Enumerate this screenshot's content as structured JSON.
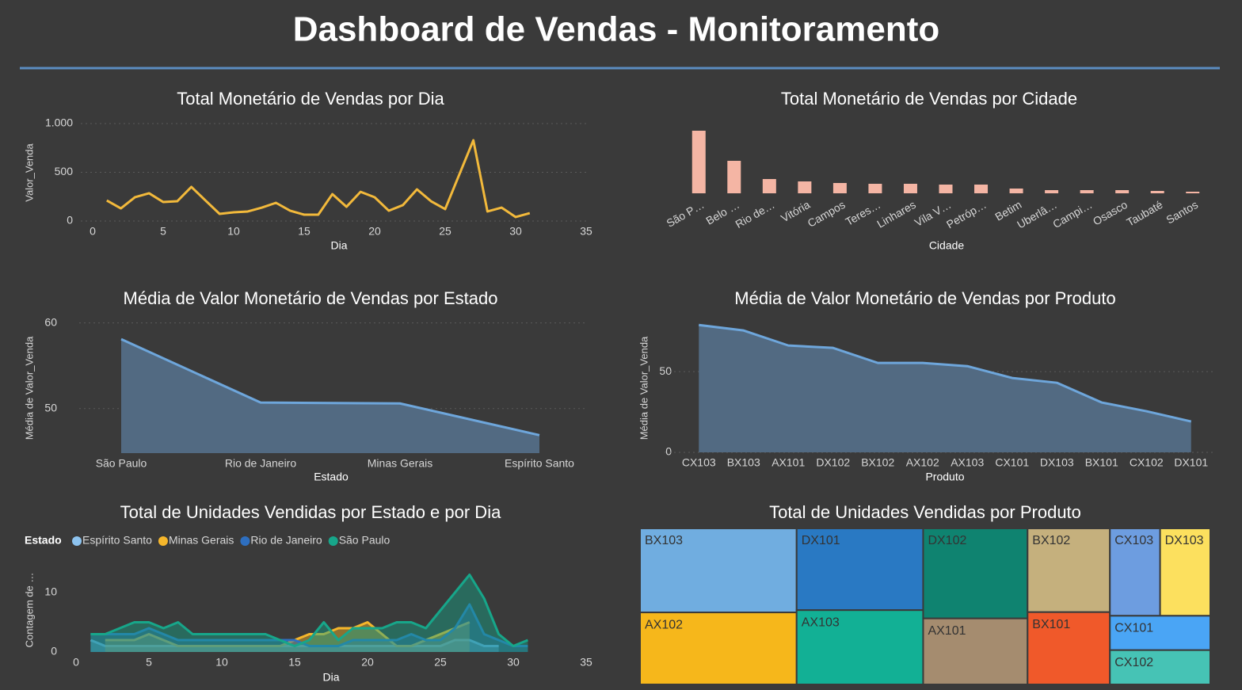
{
  "header": {
    "title": "Dashboard de Vendas - Monitoramento"
  },
  "chart_data": [
    {
      "type": "line",
      "title": "Total Monetário de Vendas por Dia",
      "x_label": "Dia",
      "y_label": "Valor_Venda",
      "x": [
        1,
        2,
        3,
        4,
        5,
        6,
        7,
        8,
        9,
        10,
        11,
        12,
        13,
        14,
        15,
        16,
        17,
        18,
        19,
        20,
        21,
        22,
        23,
        24,
        25,
        26,
        27,
        28,
        29,
        30,
        31
      ],
      "values": [
        211,
        130,
        244,
        285,
        195,
        203,
        350,
        211,
        73,
        89,
        98,
        138,
        187,
        106,
        65,
        65,
        276,
        146,
        300,
        244,
        106,
        163,
        325,
        203,
        122,
        476,
        829,
        98,
        138,
        41,
        81
      ],
      "color": "#f2b93b",
      "xlim": [
        0,
        35
      ],
      "xticks": [
        0,
        5,
        10,
        15,
        20,
        25,
        30,
        35
      ],
      "ylim": [
        0,
        1000
      ],
      "yticks": [
        0,
        500,
        {
          "value": 1000,
          "label": "1.000"
        }
      ],
      "grid": true
    },
    {
      "type": "bar",
      "title": "Total Monetário de Vendas por Cidade",
      "x_label": "Cidade",
      "categories": [
        "São P…",
        "Belo …",
        "Rio de…",
        "Vitória",
        "Campos",
        "Teres…",
        "Linhares",
        "Vila V…",
        "Petróp…",
        "Betim",
        "Uberlâ…",
        "Campi…",
        "Osasco",
        "Taubaté",
        "Santos"
      ],
      "values": [
        1975,
        1025,
        450,
        375,
        325,
        300,
        300,
        275,
        275,
        150,
        100,
        100,
        100,
        75,
        50
      ],
      "color": "#f4b5a4",
      "ylim": [
        0,
        2000
      ]
    },
    {
      "type": "area",
      "title": "Média de Valor Monetário de Vendas por Estado",
      "x_label": "Estado",
      "y_label": "Média de Valor_Venda",
      "categories": [
        "São Paulo",
        "Rio de Janeiro",
        "Minas Gerais",
        "Espírito Santo"
      ],
      "values": [
        58.1,
        50.7,
        50.6,
        46.9
      ],
      "color": "#6ea6db",
      "ylim": [
        44.8,
        60.7
      ],
      "yticks": [
        50,
        60
      ],
      "grid": true
    },
    {
      "type": "area",
      "title": "Média de Valor Monetário de Vendas por Produto",
      "x_label": "Produto",
      "y_label": "Média de Valor_Venda",
      "categories": [
        "CX103",
        "BX103",
        "AX101",
        "DX102",
        "BX102",
        "AX102",
        "AX103",
        "CX101",
        "DX103",
        "BX101",
        "CX102",
        "DX101"
      ],
      "values": [
        78.9,
        75.5,
        66.2,
        64.7,
        55.4,
        55.4,
        53.4,
        46.1,
        43.1,
        30.9,
        25.5,
        19.1
      ],
      "color": "#6ea6db",
      "ylim": [
        0,
        80
      ],
      "yticks": [
        0,
        50
      ],
      "grid": true
    },
    {
      "type": "area",
      "title": "Total de Unidades Vendidas por Estado e por Dia",
      "x_label": "Dia",
      "y_label": "Contagem de …",
      "legend_title": "Estado",
      "legend": "top-left",
      "x": [
        1,
        2,
        3,
        4,
        5,
        6,
        7,
        8,
        9,
        10,
        11,
        12,
        13,
        14,
        15,
        16,
        17,
        18,
        19,
        20,
        21,
        22,
        23,
        24,
        25,
        26,
        27,
        28,
        29,
        30,
        31
      ],
      "series": [
        {
          "name": "Espírito Santo",
          "color": "#8dc3ef",
          "values": [
            2,
            1,
            1,
            1,
            1,
            1,
            1,
            1,
            1,
            1,
            1,
            1,
            1,
            1,
            1,
            1,
            1,
            1,
            1,
            1,
            1,
            1,
            1,
            1,
            1,
            2,
            2,
            1,
            1,
            null,
            null
          ]
        },
        {
          "name": "Minas Gerais",
          "color": "#f5b62b",
          "values": [
            null,
            2,
            2,
            2,
            3,
            2,
            1,
            1,
            1,
            1,
            1,
            1,
            1,
            1,
            2,
            3,
            3,
            4,
            4,
            5,
            3,
            1,
            1,
            2,
            3,
            4,
            5,
            null,
            null,
            null,
            null
          ]
        },
        {
          "name": "Rio de Janeiro",
          "color": "#2e6fc0",
          "values": [
            3,
            3,
            3,
            3,
            4,
            3,
            2,
            2,
            2,
            2,
            2,
            2,
            2,
            2,
            2,
            1,
            1,
            1,
            2,
            2,
            2,
            2,
            3,
            2,
            2,
            4,
            8,
            3,
            2,
            1,
            1
          ]
        },
        {
          "name": "São Paulo",
          "color": "#17a68a",
          "values": [
            3,
            3,
            4,
            5,
            5,
            4,
            5,
            3,
            3,
            3,
            3,
            3,
            3,
            2,
            1,
            2,
            5,
            2,
            4,
            4,
            4,
            5,
            5,
            4,
            7,
            10,
            13,
            9,
            3,
            1,
            2
          ]
        }
      ],
      "xlim": [
        0,
        35
      ],
      "xticks": [
        0,
        5,
        10,
        15,
        20,
        25,
        30,
        35
      ],
      "ylim": [
        0,
        14
      ],
      "yticks": [
        0,
        10
      ]
    },
    {
      "type": "treemap",
      "title": "Total de Unidades Vendidas por Produto",
      "categories": [
        "BX103",
        "AX102",
        "DX101",
        "AX103",
        "DX102",
        "AX101",
        "BX102",
        "BX101",
        "CX103",
        "DX103",
        "CX101",
        "CX102"
      ],
      "values": [
        42,
        36,
        33,
        30,
        30,
        22,
        22,
        19,
        14,
        14,
        11,
        11
      ],
      "colors": [
        "#70ade0",
        "#f6b71b",
        "#2979c3",
        "#12b095",
        "#0f8370",
        "#a58c6f",
        "#c5b07d",
        "#f0592a",
        "#6d9de0",
        "#fce05e",
        "#4aa5f5",
        "#46c3b5"
      ]
    }
  ]
}
